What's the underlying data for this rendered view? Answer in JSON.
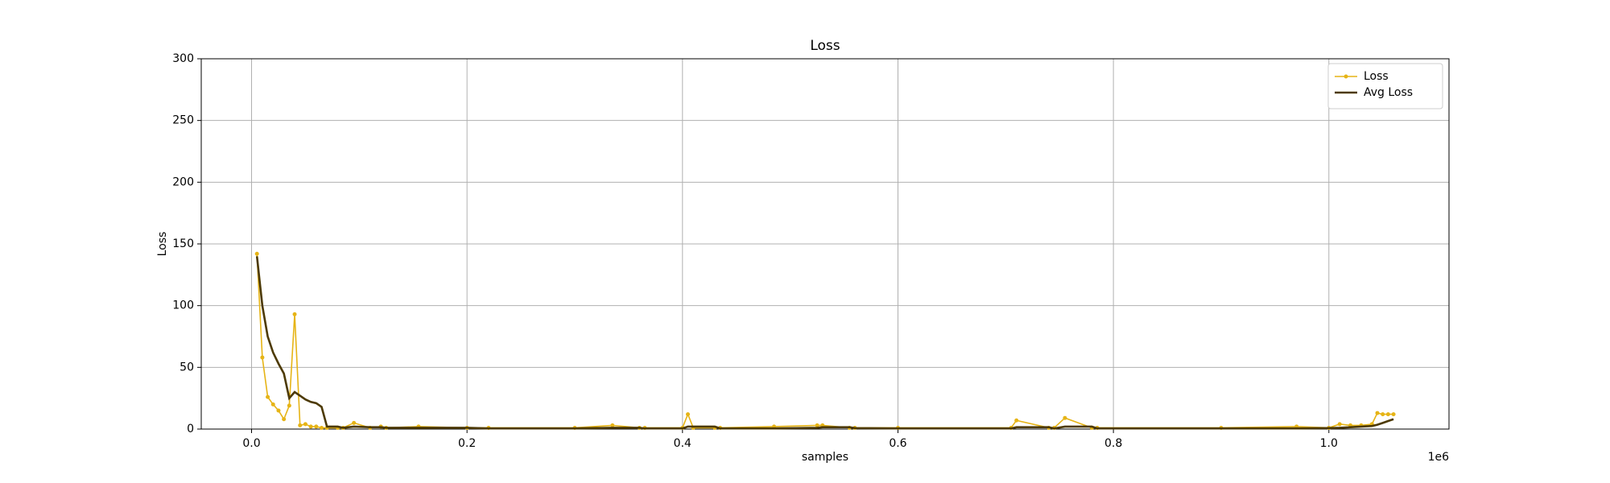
{
  "chart_data": {
    "type": "line",
    "title": "Loss",
    "xlabel": "samples",
    "ylabel": "Loss",
    "x_offset_label": "1e6",
    "x": [
      5000,
      10000,
      15000,
      20000,
      25000,
      30000,
      35000,
      40000,
      45000,
      50000,
      55000,
      60000,
      65000,
      70000,
      80000,
      85000,
      95000,
      110000,
      120000,
      125000,
      155000,
      200000,
      220000,
      300000,
      335000,
      360000,
      365000,
      400000,
      405000,
      410000,
      430000,
      435000,
      485000,
      525000,
      530000,
      555000,
      560000,
      600000,
      705000,
      710000,
      740000,
      745000,
      755000,
      780000,
      785000,
      900000,
      970000,
      1000000,
      1010000,
      1020000,
      1030000,
      1040000,
      1045000,
      1050000,
      1055000,
      1060000
    ],
    "series": [
      {
        "name": "Loss",
        "color": "#e6b416",
        "marker": true,
        "values": [
          142,
          58,
          26,
          20,
          15,
          8,
          19,
          93,
          3,
          4,
          2,
          2,
          1,
          1,
          1,
          1,
          5,
          1,
          2,
          1,
          2,
          1,
          1,
          1,
          3,
          1,
          1,
          1,
          12,
          1,
          1,
          1,
          2,
          3,
          3,
          1,
          1,
          1,
          1,
          7,
          1,
          1,
          9,
          1,
          1,
          1,
          2,
          1,
          4,
          3,
          3,
          4,
          13,
          12,
          12,
          12
        ]
      },
      {
        "name": "Avg Loss",
        "color": "#4d3a05",
        "marker": false,
        "values": [
          140,
          100,
          75,
          62,
          53,
          45,
          25,
          30,
          27,
          24,
          22,
          21,
          18,
          2,
          2,
          1,
          2,
          1.5,
          1.5,
          1,
          1,
          1,
          0.5,
          0.5,
          1,
          1,
          0.5,
          0.5,
          2,
          2,
          2,
          0.5,
          0.5,
          1,
          1.5,
          1.5,
          0.8,
          0.5,
          0.5,
          1.5,
          1.5,
          0.5,
          2,
          2,
          0.5,
          0.5,
          0.5,
          0.8,
          1,
          1.5,
          2,
          2.5,
          3.5,
          5,
          6.5,
          8
        ]
      }
    ],
    "xlim": [
      -46700,
      1111500
    ],
    "ylim": [
      0,
      300
    ],
    "xticks": [
      {
        "value": 0,
        "label": "0.0"
      },
      {
        "value": 200000,
        "label": "0.2"
      },
      {
        "value": 400000,
        "label": "0.4"
      },
      {
        "value": 600000,
        "label": "0.6"
      },
      {
        "value": 800000,
        "label": "0.8"
      },
      {
        "value": 1000000,
        "label": "1.0"
      }
    ],
    "yticks": [
      0,
      50,
      100,
      150,
      200,
      250,
      300
    ],
    "grid": true,
    "legend": "upper right"
  }
}
